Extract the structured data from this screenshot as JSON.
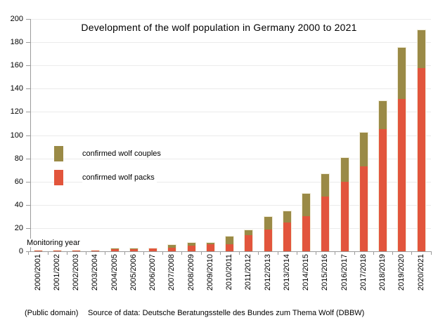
{
  "title": "Development of the wolf population in Germany 2000 to 2021",
  "legend": {
    "items": [
      {
        "label": "confirmed wolf couples",
        "color": "#9a8a46"
      },
      {
        "label": "confirmed wolf packs",
        "color": "#e2553c"
      }
    ]
  },
  "axis_caption": "Monitoring year",
  "footer": {
    "license": "(Public domain)",
    "source": "Source of data: Deutsche Beratungsstelle des Bundes zum Thema Wolf (DBBW)"
  },
  "chart_data": {
    "type": "bar",
    "stacked": true,
    "title": "Development of the wolf population in Germany 2000 to 2021",
    "xlabel": "Monitoring year",
    "ylabel": "",
    "ylim": [
      0,
      200
    ],
    "y_tick_step": 20,
    "y_tick_labels": [
      "0",
      "20",
      "40",
      "60",
      "80",
      "100",
      "120",
      "140",
      "160",
      "180",
      "200"
    ],
    "grid": true,
    "legend_position": "inside-upper-left",
    "categories": [
      "2000/2001",
      "2001/2002",
      "2002/2003",
      "2003/2004",
      "2004/2005",
      "2005/2006",
      "2006/2007",
      "2007/2008",
      "2008/2009",
      "2009/2010",
      "2010/2011",
      "2011/2012",
      "2012/2013",
      "2013/2014",
      "2014/2015",
      "2015/2016",
      "2016/2017",
      "2017/2018",
      "2018/2019",
      "2019/2020",
      "2020/2021"
    ],
    "series": [
      {
        "name": "confirmed wolf packs",
        "color": "#e2553c",
        "stack_position": "bottom",
        "values": [
          1,
          1,
          1,
          1,
          2,
          2,
          3,
          3,
          5,
          6,
          6,
          14,
          19,
          25,
          30,
          47,
          60,
          73,
          105,
          131,
          158
        ]
      },
      {
        "name": "confirmed wolf couples",
        "color": "#9a8a46",
        "stack_position": "top",
        "values": [
          0,
          0,
          0,
          0,
          1,
          1,
          0,
          3,
          3,
          2,
          7,
          5,
          11,
          10,
          20,
          20,
          21,
          30,
          25,
          45,
          33
        ]
      }
    ]
  }
}
